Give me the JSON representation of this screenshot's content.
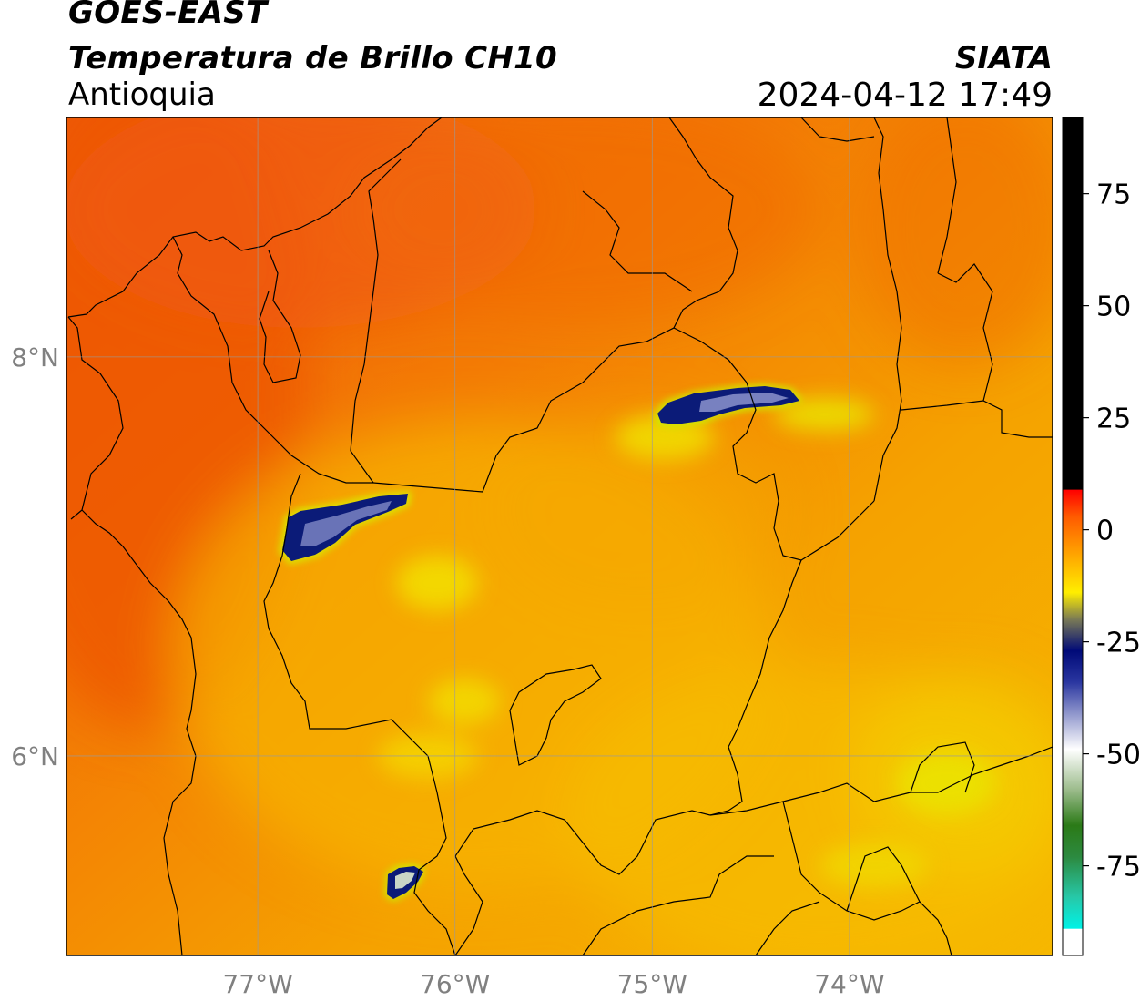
{
  "header": {
    "satellite": "GOES-EAST",
    "product": "Temperatura de Brillo CH10",
    "region": "Antioquia",
    "agency": "SIATA",
    "datetime": "2024-04-12 17:49"
  },
  "map": {
    "lon_range": [
      -77.97,
      -72.97
    ],
    "lat_range": [
      5.0,
      9.2
    ],
    "lon_ticks": [
      {
        "value": -77,
        "label": "77°W"
      },
      {
        "value": -76,
        "label": "76°W"
      },
      {
        "value": -75,
        "label": "75°W"
      },
      {
        "value": -74,
        "label": "74°W"
      }
    ],
    "lat_ticks": [
      {
        "value": 8,
        "label": "8°N"
      },
      {
        "value": 6,
        "label": "6°N"
      }
    ],
    "gridlines": true,
    "colors": {
      "warm": "#f05a0a",
      "mid": "#f39a00",
      "cool": "#f7c600",
      "cloud_edge": "#e9f000",
      "cloud_core": "#0a1470",
      "border": "#000000",
      "grid": "#9a9a9a"
    }
  },
  "colorbar": {
    "range": [
      -95,
      92
    ],
    "ticks": [
      {
        "value": 75,
        "label": "75"
      },
      {
        "value": 50,
        "label": "50"
      },
      {
        "value": 25,
        "label": "25"
      },
      {
        "value": 0,
        "label": "0"
      },
      {
        "value": -25,
        "label": "-25"
      },
      {
        "value": -50,
        "label": "-50"
      },
      {
        "value": -75,
        "label": "-75"
      }
    ],
    "stops": [
      {
        "value": 92,
        "color": "#000000"
      },
      {
        "value": 9,
        "color": "#000000"
      },
      {
        "value": 8.9,
        "color": "#ff0000"
      },
      {
        "value": 3,
        "color": "#ff5a00"
      },
      {
        "value": -5,
        "color": "#ffa000"
      },
      {
        "value": -14,
        "color": "#ffee00"
      },
      {
        "value": -20,
        "color": "#7a7a55"
      },
      {
        "value": -27,
        "color": "#000a78"
      },
      {
        "value": -34,
        "color": "#2a36a0"
      },
      {
        "value": -41,
        "color": "#8f96cc"
      },
      {
        "value": -49,
        "color": "#ffffff"
      },
      {
        "value": -58,
        "color": "#9cbc8c"
      },
      {
        "value": -66,
        "color": "#2b7a17"
      },
      {
        "value": -73,
        "color": "#2c8a40"
      },
      {
        "value": -82,
        "color": "#27c8a8"
      },
      {
        "value": -89,
        "color": "#00f2e6"
      },
      {
        "value": -89.1,
        "color": "#ffffff"
      },
      {
        "value": -95,
        "color": "#ffffff"
      }
    ]
  }
}
